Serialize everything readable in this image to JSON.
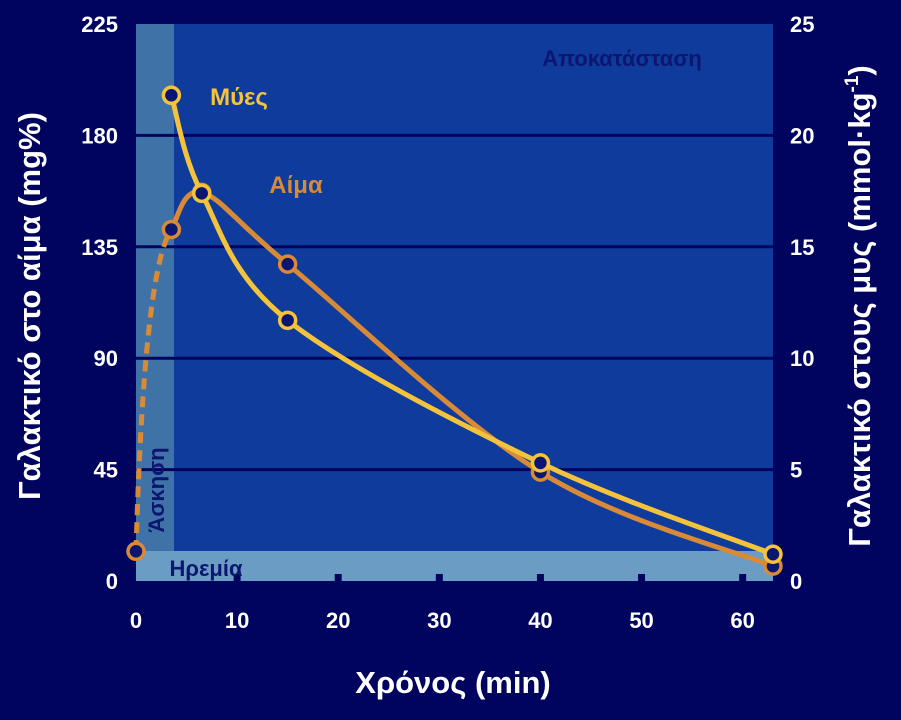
{
  "chart_data": {
    "type": "line",
    "xlabel": "Χρόνος (min)",
    "ylabel_left": "Γαλακτικό στο αίμα (mg%)",
    "ylabel_right": "Γαλακτικό στους μυς (mmol·kg",
    "ylabel_right_superscript": "-1",
    "xlim": [
      0,
      63
    ],
    "ylim_left": [
      0,
      225
    ],
    "ylim_right": [
      0,
      25
    ],
    "x_ticks": [
      0,
      10,
      20,
      30,
      40,
      50,
      60
    ],
    "y_ticks_left": [
      0,
      45,
      90,
      135,
      180,
      225
    ],
    "y_ticks_right": [
      0,
      5,
      10,
      15,
      20,
      25
    ],
    "grid": "horizontal",
    "annotations": {
      "recovery": "Αποκατάσταση",
      "exercise": "Άσκηση",
      "rest": "Ηρεμία"
    },
    "regions": {
      "exercise_x": [
        0,
        3.5
      ],
      "rest_y_left": [
        0,
        12
      ]
    },
    "series": [
      {
        "name": "Μύες",
        "axis": "right",
        "color": "#f5c33b",
        "points": [
          [
            3.5,
            21.8
          ],
          [
            6.5,
            17.4
          ],
          [
            15,
            11.7
          ],
          [
            40,
            5.3
          ],
          [
            63,
            1.2
          ]
        ]
      },
      {
        "name": "Αίμα",
        "axis": "left",
        "color": "#d98a36",
        "dashed_segment_until_x": 3.5,
        "points": [
          [
            0,
            12
          ],
          [
            3.5,
            142
          ],
          [
            6.5,
            157
          ],
          [
            15,
            128
          ],
          [
            40,
            44
          ],
          [
            63,
            6
          ]
        ]
      }
    ]
  },
  "colors": {
    "background": "#00045e",
    "plot_area": "#0f3b9c",
    "exercise_band": "#3f73a8",
    "rest_band": "#6b9cc4",
    "grid": "#00045e",
    "point_fill": "#0b1670"
  }
}
